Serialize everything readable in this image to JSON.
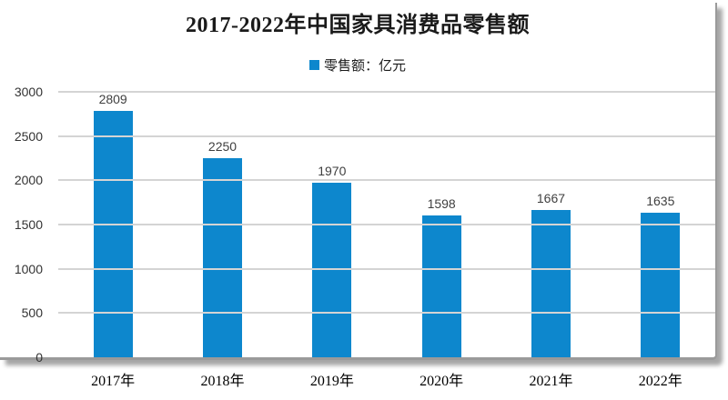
{
  "title": "2017-2022年中国家具消费品零售额",
  "legend": {
    "label": "零售额：亿元",
    "marker_color": "#0d87cd"
  },
  "chart_data": {
    "type": "bar",
    "title": "2017-2022年中国家具消费品零售额",
    "categories": [
      "2017年",
      "2018年",
      "2019年",
      "2020年",
      "2021年",
      "2022年"
    ],
    "values": [
      2809,
      2250,
      1970,
      1598,
      1667,
      1635
    ],
    "series_name": "零售额：亿元",
    "unit": "亿元",
    "xlabel": "",
    "ylabel": "",
    "ylim": [
      0,
      3000
    ],
    "yticks": [
      0,
      500,
      1000,
      1500,
      2000,
      2500,
      3000
    ],
    "grid": true,
    "data_labels": true,
    "legend_position": "top-center",
    "colors": {
      "bar": "#0d87cd",
      "gridline": "#d4d4d4",
      "axis_frame": "#9a9a9a",
      "tick_label": "#333333",
      "data_label": "#3f3f3f",
      "title_text": "#1a1a1a"
    }
  }
}
